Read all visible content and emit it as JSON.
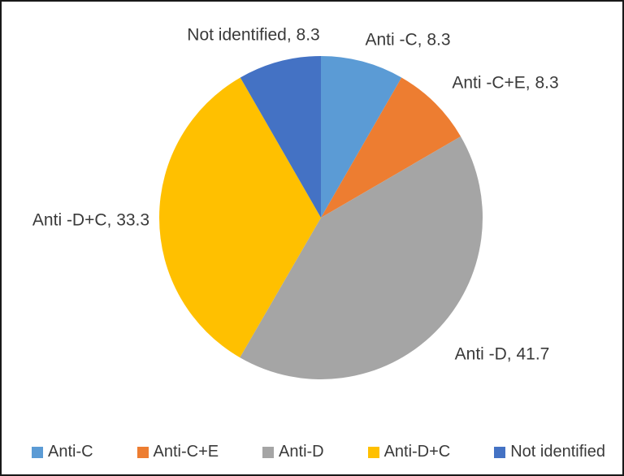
{
  "frame": {
    "background": "#ffffff",
    "border_color": "#181818"
  },
  "chart_data": {
    "type": "pie",
    "title": "",
    "start_angle_deg": 0,
    "direction": "clockwise",
    "legend_position": "bottom",
    "text_color": "#3a3a3a",
    "slices": [
      {
        "label": "Anti-C",
        "data_label": "Anti -C, 8.3",
        "value": 8.3,
        "color": "#5B9BD5"
      },
      {
        "label": "Anti-C+E",
        "data_label": "Anti -C+E, 8.3",
        "value": 8.3,
        "color": "#ED7D31"
      },
      {
        "label": "Anti-D",
        "data_label": "Anti -D, 41.7",
        "value": 41.7,
        "color": "#A5A5A5"
      },
      {
        "label": "Anti-D+C",
        "data_label": "Anti -D+C, 33.3",
        "value": 33.3,
        "color": "#FFC000"
      },
      {
        "label": "Not identified",
        "data_label": "Not identified, 8.3",
        "value": 8.3,
        "color": "#4472C4"
      }
    ]
  }
}
